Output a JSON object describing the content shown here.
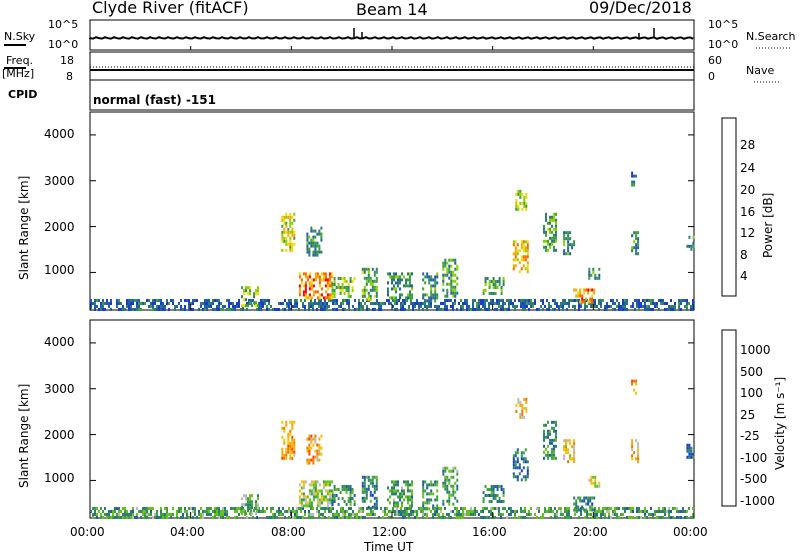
{
  "header": {
    "station": "Clyde River (fitACF)",
    "beam": "Beam 14",
    "date": "09/Dec/2018"
  },
  "status_panels": {
    "nsky_label": "N.Sky",
    "nsearch_label": "N.Search",
    "freq_label": "Freq.",
    "freq_unit": "[MHz]",
    "nave_label": "Nave",
    "cpid_label": "CPID",
    "cpid_value": "normal (fast) -151",
    "noise_ticks": [
      "10^5",
      "10^0"
    ],
    "freq_ticks": [
      "18",
      "8"
    ],
    "nave_ticks": [
      "60",
      "0"
    ]
  },
  "colorbars": {
    "power": {
      "label": "Power [dB]",
      "ticks": [
        "28",
        "24",
        "20",
        "16",
        "12",
        "8",
        "4"
      ],
      "colors": [
        "#ff0000",
        "#ff6600",
        "#f5a800",
        "#eedd00",
        "#8ad000",
        "#3aa040",
        "#2e7d6e",
        "#1f5fa8",
        "#1a3ccf",
        "#0000ff"
      ]
    },
    "velocity": {
      "label": "Velocity [m s⁻¹]",
      "ticks": [
        "1000",
        "500",
        "100",
        "25",
        "-25",
        "-100",
        "-500",
        "-1000"
      ],
      "colors": [
        "#1a3ccf",
        "#1f5fa8",
        "#2e7d6e",
        "#3aa040",
        "#66c020",
        "#bbbbbb",
        "#f5c400",
        "#f5a800",
        "#f07800",
        "#ff4400",
        "#ff0000"
      ]
    }
  },
  "axes": {
    "ylabel": "Slant Range [km]",
    "yticks": [
      "4000",
      "3000",
      "2000",
      "1000"
    ],
    "xticks": [
      "00:00",
      "04:00",
      "08:00",
      "12:00",
      "16:00",
      "20:00",
      "00:00"
    ],
    "xlabel": "Time UT"
  },
  "chart_data": [
    {
      "type": "heatmap",
      "title": "",
      "xlabel": "Time UT",
      "ylabel": "Slant Range [km]",
      "x_range_hours": [
        0,
        24
      ],
      "y_range_km": [
        180,
        4500
      ],
      "colorbar_label": "Power [dB]",
      "patches": [
        {
          "t": [
            0.0,
            24.0
          ],
          "r": [
            180,
            420
          ],
          "level": 0.25
        },
        {
          "t": [
            6.0,
            6.7
          ],
          "r": [
            300,
            700
          ],
          "level": 0.55
        },
        {
          "t": [
            7.6,
            8.1
          ],
          "r": [
            1500,
            2300
          ],
          "level": 0.6
        },
        {
          "t": [
            8.6,
            9.2
          ],
          "r": [
            1400,
            2000
          ],
          "level": 0.35
        },
        {
          "t": [
            8.3,
            9.6
          ],
          "r": [
            450,
            1000
          ],
          "level": 0.85
        },
        {
          "t": [
            9.6,
            10.5
          ],
          "r": [
            500,
            900
          ],
          "level": 0.5
        },
        {
          "t": [
            10.8,
            11.4
          ],
          "r": [
            400,
            1100
          ],
          "level": 0.45
        },
        {
          "t": [
            11.8,
            12.8
          ],
          "r": [
            450,
            1000
          ],
          "level": 0.4
        },
        {
          "t": [
            13.2,
            13.8
          ],
          "r": [
            400,
            1000
          ],
          "level": 0.35
        },
        {
          "t": [
            14.0,
            14.6
          ],
          "r": [
            500,
            1300
          ],
          "level": 0.4
        },
        {
          "t": [
            15.6,
            16.4
          ],
          "r": [
            550,
            900
          ],
          "level": 0.45
        },
        {
          "t": [
            16.8,
            17.4
          ],
          "r": [
            1000,
            1700
          ],
          "level": 0.75
        },
        {
          "t": [
            16.9,
            17.3
          ],
          "r": [
            2400,
            2800
          ],
          "level": 0.55
        },
        {
          "t": [
            18.0,
            18.5
          ],
          "r": [
            1500,
            2300
          ],
          "level": 0.45
        },
        {
          "t": [
            18.8,
            19.2
          ],
          "r": [
            1400,
            1900
          ],
          "level": 0.35
        },
        {
          "t": [
            19.2,
            20.0
          ],
          "r": [
            350,
            650
          ],
          "level": 0.8
        },
        {
          "t": [
            19.8,
            20.2
          ],
          "r": [
            900,
            1100
          ],
          "level": 0.4
        },
        {
          "t": [
            21.5,
            21.8
          ],
          "r": [
            1400,
            1900
          ],
          "level": 0.35
        },
        {
          "t": [
            21.5,
            21.7
          ],
          "r": [
            2900,
            3200
          ],
          "level": 0.3
        },
        {
          "t": [
            23.7,
            24.0
          ],
          "r": [
            1500,
            1800
          ],
          "level": 0.4
        }
      ]
    },
    {
      "type": "heatmap",
      "title": "",
      "xlabel": "Time UT",
      "ylabel": "Slant Range [km]",
      "x_range_hours": [
        0,
        24
      ],
      "y_range_km": [
        180,
        4500
      ],
      "colorbar_label": "Velocity [m s⁻¹]",
      "patches": [
        {
          "t": [
            0.0,
            24.0
          ],
          "r": [
            180,
            420
          ],
          "level": 0.7
        },
        {
          "t": [
            6.0,
            6.7
          ],
          "r": [
            300,
            700
          ],
          "level": 0.65
        },
        {
          "t": [
            7.6,
            8.1
          ],
          "r": [
            1500,
            2300
          ],
          "level": 0.3
        },
        {
          "t": [
            8.6,
            9.2
          ],
          "r": [
            1400,
            2000
          ],
          "level": 0.3
        },
        {
          "t": [
            8.3,
            9.6
          ],
          "r": [
            450,
            1000
          ],
          "level": 0.55
        },
        {
          "t": [
            9.6,
            10.5
          ],
          "r": [
            500,
            900
          ],
          "level": 0.75
        },
        {
          "t": [
            10.8,
            11.4
          ],
          "r": [
            400,
            1100
          ],
          "level": 0.8
        },
        {
          "t": [
            11.8,
            12.8
          ],
          "r": [
            450,
            1000
          ],
          "level": 0.7
        },
        {
          "t": [
            13.2,
            13.8
          ],
          "r": [
            400,
            1000
          ],
          "level": 0.75
        },
        {
          "t": [
            14.0,
            14.6
          ],
          "r": [
            500,
            1300
          ],
          "level": 0.7
        },
        {
          "t": [
            15.6,
            16.4
          ],
          "r": [
            550,
            900
          ],
          "level": 0.8
        },
        {
          "t": [
            16.8,
            17.4
          ],
          "r": [
            1000,
            1700
          ],
          "level": 0.85
        },
        {
          "t": [
            16.9,
            17.3
          ],
          "r": [
            2400,
            2800
          ],
          "level": 0.35
        },
        {
          "t": [
            18.0,
            18.5
          ],
          "r": [
            1500,
            2300
          ],
          "level": 0.75
        },
        {
          "t": [
            18.8,
            19.2
          ],
          "r": [
            1400,
            1900
          ],
          "level": 0.4
        },
        {
          "t": [
            19.2,
            20.0
          ],
          "r": [
            350,
            650
          ],
          "level": 0.8
        },
        {
          "t": [
            19.8,
            20.2
          ],
          "r": [
            900,
            1100
          ],
          "level": 0.5
        },
        {
          "t": [
            21.5,
            21.8
          ],
          "r": [
            1400,
            1900
          ],
          "level": 0.35
        },
        {
          "t": [
            21.5,
            21.7
          ],
          "r": [
            2900,
            3200
          ],
          "level": 0.3
        },
        {
          "t": [
            23.7,
            24.0
          ],
          "r": [
            1500,
            1800
          ],
          "level": 0.85
        }
      ]
    }
  ]
}
